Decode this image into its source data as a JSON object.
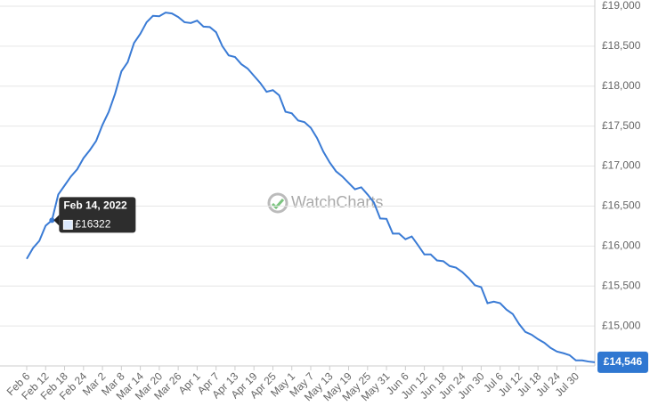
{
  "chart_data": {
    "type": "line",
    "watermark": "WatchCharts",
    "color": "#3a7bd5",
    "categories": [
      "Feb 6",
      null,
      null,
      "Feb 12",
      null,
      null,
      "Feb 18",
      null,
      null,
      "Feb 24",
      null,
      null,
      "Mar 2",
      null,
      null,
      "Mar 8",
      null,
      null,
      "Mar 14",
      null,
      null,
      "Mar 20",
      null,
      null,
      "Mar 26",
      null,
      null,
      "Apr 1",
      null,
      null,
      "Apr 7",
      null,
      null,
      "Apr 13",
      null,
      null,
      "Apr 19",
      null,
      null,
      "Apr 25",
      null,
      null,
      "May 1",
      null,
      null,
      "May 7",
      null,
      null,
      "May 13",
      null,
      null,
      "May 19",
      null,
      null,
      "May 25",
      null,
      null,
      "May 31",
      null,
      null,
      "Jun 6",
      null,
      null,
      "Jun 12",
      null,
      null,
      "Jun 18",
      null,
      null,
      "Jun 24",
      null,
      null,
      "Jun 30",
      null,
      null,
      "Jul 6",
      null,
      null,
      "Jul 12",
      null,
      null,
      "Jul 18",
      null,
      null,
      "Jul 24",
      null,
      null,
      "Jul 30",
      null,
      null,
      null
    ],
    "values": [
      15840,
      15975,
      16065,
      16255,
      16322,
      16645,
      16757,
      16870,
      16960,
      17100,
      17200,
      17315,
      17515,
      17680,
      17905,
      18185,
      18300,
      18540,
      18655,
      18800,
      18880,
      18875,
      18920,
      18910,
      18865,
      18800,
      18790,
      18820,
      18745,
      18740,
      18675,
      18500,
      18385,
      18365,
      18275,
      18220,
      18130,
      18040,
      17930,
      17950,
      17885,
      17680,
      17660,
      17570,
      17550,
      17480,
      17350,
      17180,
      17045,
      16935,
      16870,
      16790,
      16710,
      16735,
      16645,
      16545,
      16345,
      16340,
      16155,
      16155,
      16085,
      16120,
      16010,
      15895,
      15895,
      15820,
      15810,
      15750,
      15730,
      15675,
      15600,
      15510,
      15485,
      15285,
      15305,
      15285,
      15205,
      15150,
      15025,
      14925,
      14890,
      14835,
      14790,
      14725,
      14680,
      14660,
      14635,
      14570,
      14570,
      14555,
      14546
    ],
    "ylim": [
      14500,
      19000
    ],
    "yticks": [
      {
        "value": 15000,
        "label": "£15,000"
      },
      {
        "value": 15500,
        "label": "£15,500"
      },
      {
        "value": 16000,
        "label": "£16,000"
      },
      {
        "value": 16500,
        "label": "£16,500"
      },
      {
        "value": 17000,
        "label": "£17,000"
      },
      {
        "value": 17500,
        "label": "£17,500"
      },
      {
        "value": 18000,
        "label": "£18,000"
      },
      {
        "value": 18500,
        "label": "£18,500"
      },
      {
        "value": 19000,
        "label": "£19,000"
      }
    ],
    "grid": true,
    "tooltip": {
      "index": 4,
      "title": "Feb 14, 2022",
      "value": 16322,
      "label": "£16322"
    },
    "current_price": {
      "value": 14546,
      "label": "£14,546"
    }
  }
}
